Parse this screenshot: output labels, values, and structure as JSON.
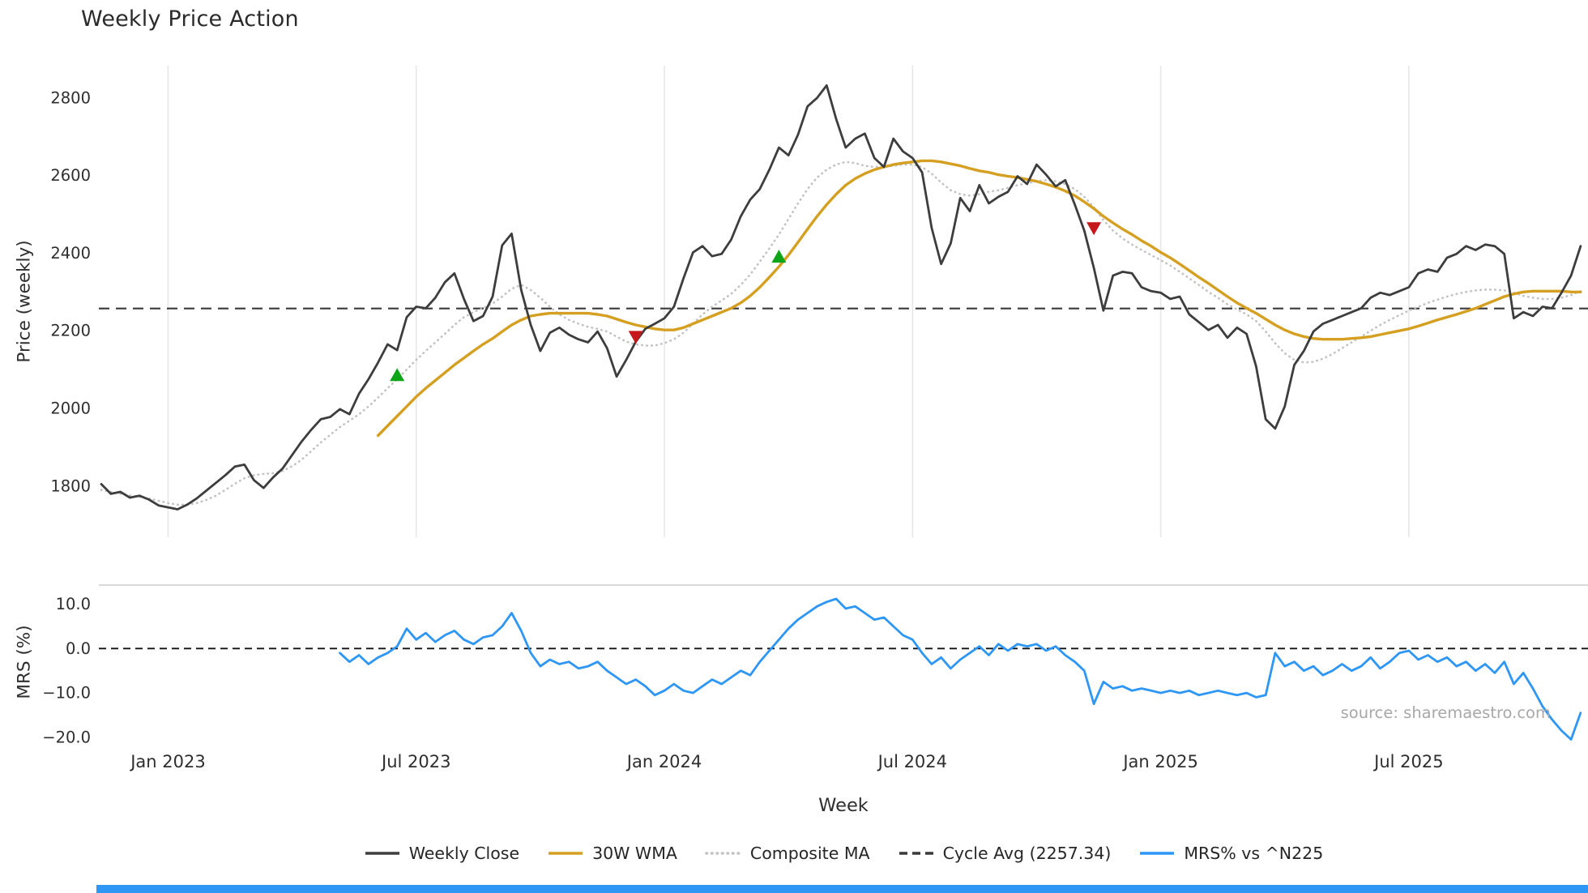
{
  "title": "Weekly Price Action",
  "xlabel": "Week",
  "source": "source: sharemaestro.com",
  "colors": {
    "close": "#3d3d3d",
    "wma": "#d5a021",
    "composite": "#c2c2c2",
    "cycle": "#3a3a3a",
    "mrs": "#2e96f5",
    "buy": "#0fa519",
    "sell": "#c5171c",
    "grid": "#e7e7e7",
    "mrs_spine": "#cbcbcb",
    "zero_line": "#111111",
    "tick_text": "#2e2e2e",
    "source_text": "#a8a8a8",
    "accent_bar": "#2e96f5"
  },
  "legend": [
    {
      "id": "weekly-close",
      "label": "Weekly Close",
      "style": "solid",
      "color_key": "close"
    },
    {
      "id": "wma",
      "label": "30W WMA",
      "style": "solid",
      "color_key": "wma"
    },
    {
      "id": "composite",
      "label": "Composite MA",
      "style": "dotted",
      "color_key": "composite"
    },
    {
      "id": "cycle-avg",
      "label": "Cycle Avg (2257.34)",
      "style": "dashed",
      "color_key": "cycle"
    },
    {
      "id": "mrs",
      "label": "MRS% vs ^N225",
      "style": "solid",
      "color_key": "mrs"
    }
  ],
  "chart_data": [
    {
      "type": "line",
      "panel": "price",
      "ylabel": "Price (weekly)",
      "x_unit": "week_index",
      "ylim": [
        1668,
        2883
      ],
      "yticks": [
        {
          "value": 1800,
          "label": "1800"
        },
        {
          "value": 2000,
          "label": "2000"
        },
        {
          "value": 2200,
          "label": "2200"
        },
        {
          "value": 2400,
          "label": "2400"
        },
        {
          "value": 2600,
          "label": "2600"
        },
        {
          "value": 2800,
          "label": "2800"
        }
      ],
      "xticks": [
        {
          "week": 7,
          "label": "Jan 2023"
        },
        {
          "week": 33,
          "label": "Jul 2023"
        },
        {
          "week": 59,
          "label": "Jan 2024"
        },
        {
          "week": 85,
          "label": "Jul 2024"
        },
        {
          "week": 111,
          "label": "Jan 2025"
        },
        {
          "week": 137,
          "label": "Jul 2025"
        }
      ],
      "cycle_avg": 2257.34,
      "series": [
        {
          "name": "Weekly Close",
          "start_week": 0,
          "values": [
            1805,
            1780,
            1785,
            1770,
            1775,
            1765,
            1750,
            1745,
            1740,
            1752,
            1768,
            1788,
            1808,
            1828,
            1850,
            1855,
            1815,
            1795,
            1822,
            1845,
            1880,
            1915,
            1945,
            1972,
            1978,
            1998,
            1985,
            2038,
            2075,
            2118,
            2165,
            2150,
            2235,
            2262,
            2258,
            2285,
            2325,
            2348,
            2282,
            2225,
            2238,
            2288,
            2420,
            2450,
            2305,
            2215,
            2148,
            2195,
            2208,
            2190,
            2178,
            2170,
            2198,
            2155,
            2082,
            2125,
            2172,
            2205,
            2218,
            2232,
            2262,
            2335,
            2402,
            2418,
            2392,
            2398,
            2435,
            2495,
            2538,
            2565,
            2615,
            2672,
            2652,
            2705,
            2778,
            2800,
            2832,
            2745,
            2672,
            2695,
            2708,
            2645,
            2622,
            2695,
            2662,
            2645,
            2608,
            2465,
            2372,
            2425,
            2542,
            2508,
            2575,
            2528,
            2545,
            2558,
            2598,
            2578,
            2628,
            2602,
            2572,
            2588,
            2525,
            2458,
            2362,
            2252,
            2342,
            2352,
            2348,
            2312,
            2302,
            2298,
            2282,
            2288,
            2242,
            2222,
            2202,
            2215,
            2182,
            2208,
            2192,
            2108,
            1972,
            1948,
            2005,
            2112,
            2148,
            2198,
            2218,
            2228,
            2238,
            2248,
            2258,
            2285,
            2298,
            2292,
            2302,
            2312,
            2348,
            2358,
            2352,
            2388,
            2398,
            2418,
            2408,
            2422,
            2418,
            2398,
            2232,
            2248,
            2238,
            2262,
            2258,
            2298,
            2342,
            2418
          ]
        },
        {
          "name": "30W WMA",
          "start_week": 29,
          "values": [
            1930,
            1955,
            1980,
            2005,
            2030,
            2052,
            2072,
            2092,
            2112,
            2130,
            2148,
            2165,
            2180,
            2198,
            2215,
            2228,
            2238,
            2242,
            2245,
            2245,
            2245,
            2245,
            2245,
            2242,
            2238,
            2230,
            2222,
            2215,
            2210,
            2205,
            2202,
            2202,
            2208,
            2218,
            2228,
            2238,
            2248,
            2258,
            2272,
            2290,
            2312,
            2338,
            2365,
            2395,
            2428,
            2462,
            2495,
            2525,
            2552,
            2575,
            2592,
            2605,
            2615,
            2622,
            2628,
            2632,
            2635,
            2638,
            2638,
            2635,
            2630,
            2625,
            2618,
            2612,
            2608,
            2602,
            2598,
            2595,
            2590,
            2585,
            2578,
            2570,
            2560,
            2548,
            2532,
            2515,
            2495,
            2478,
            2462,
            2448,
            2432,
            2418,
            2402,
            2388,
            2372,
            2355,
            2338,
            2322,
            2305,
            2288,
            2272,
            2258,
            2245,
            2230,
            2215,
            2202,
            2192,
            2185,
            2180,
            2178,
            2178,
            2178,
            2180,
            2182,
            2185,
            2190,
            2195,
            2200,
            2205,
            2212,
            2220,
            2228,
            2235,
            2242,
            2250,
            2258,
            2268,
            2278,
            2288,
            2295,
            2300,
            2302,
            2302,
            2302,
            2302,
            2300,
            2300
          ]
        },
        {
          "name": "Composite MA",
          "start_week": 0,
          "values": [
            1790,
            1785,
            1780,
            1776,
            1772,
            1768,
            1762,
            1756,
            1752,
            1752,
            1756,
            1764,
            1775,
            1790,
            1806,
            1820,
            1828,
            1831,
            1833,
            1839,
            1851,
            1868,
            1890,
            1912,
            1932,
            1952,
            1968,
            1985,
            2005,
            2028,
            2052,
            2075,
            2100,
            2125,
            2148,
            2170,
            2192,
            2215,
            2235,
            2248,
            2258,
            2270,
            2288,
            2308,
            2318,
            2305,
            2285,
            2262,
            2242,
            2228,
            2218,
            2210,
            2205,
            2198,
            2185,
            2172,
            2165,
            2162,
            2162,
            2168,
            2178,
            2195,
            2218,
            2242,
            2262,
            2278,
            2295,
            2318,
            2345,
            2378,
            2412,
            2448,
            2488,
            2528,
            2565,
            2595,
            2615,
            2628,
            2635,
            2632,
            2625,
            2622,
            2622,
            2625,
            2628,
            2628,
            2622,
            2605,
            2582,
            2562,
            2552,
            2548,
            2552,
            2558,
            2562,
            2568,
            2575,
            2580,
            2585,
            2588,
            2585,
            2578,
            2565,
            2545,
            2518,
            2485,
            2458,
            2438,
            2422,
            2408,
            2395,
            2382,
            2368,
            2352,
            2335,
            2318,
            2300,
            2285,
            2268,
            2255,
            2242,
            2225,
            2198,
            2168,
            2142,
            2125,
            2118,
            2120,
            2128,
            2140,
            2155,
            2170,
            2185,
            2200,
            2215,
            2228,
            2240,
            2252,
            2262,
            2272,
            2280,
            2288,
            2295,
            2300,
            2304,
            2306,
            2306,
            2304,
            2298,
            2290,
            2285,
            2282,
            2282,
            2285,
            2292,
            2302
          ]
        }
      ],
      "signal_markers": [
        {
          "week": 31,
          "price": 2085,
          "type": "buy"
        },
        {
          "week": 56,
          "price": 2185,
          "type": "sell"
        },
        {
          "week": 71,
          "price": 2390,
          "type": "buy"
        },
        {
          "week": 104,
          "price": 2465,
          "type": "sell"
        }
      ]
    },
    {
      "type": "line",
      "panel": "mrs",
      "ylabel": "MRS (%)",
      "ylim": [
        -20.4,
        14.3
      ],
      "yticks": [
        {
          "value": 10,
          "label": "10.0"
        },
        {
          "value": 0,
          "label": "0.0"
        },
        {
          "value": -10,
          "label": "−10.0"
        },
        {
          "value": -20,
          "label": "−20.0"
        }
      ],
      "zero_line": 0,
      "series": [
        {
          "name": "MRS% vs ^N225",
          "start_week": 25,
          "values": [
            -1,
            -3,
            -1.5,
            -3.5,
            -2,
            -1,
            0.5,
            4.5,
            2,
            3.5,
            1.5,
            3,
            4,
            2,
            1,
            2.5,
            3,
            5,
            8,
            4,
            -1,
            -4,
            -2.5,
            -3.5,
            -3,
            -4.5,
            -4,
            -3,
            -5,
            -6.5,
            -8,
            -7,
            -8.5,
            -10.5,
            -9.5,
            -8,
            -9.5,
            -10,
            -8.5,
            -7,
            -8,
            -6.5,
            -5,
            -6,
            -3,
            -0.5,
            2,
            4.5,
            6.5,
            8,
            9.5,
            10.5,
            11.2,
            9,
            9.5,
            8,
            6.5,
            7,
            5,
            3,
            2,
            -1,
            -3.5,
            -2,
            -4.5,
            -2.5,
            -1,
            0.5,
            -1.5,
            1,
            -0.5,
            1,
            0.5,
            1,
            -0.5,
            0.5,
            -1.5,
            -3,
            -5,
            -12.5,
            -7.5,
            -9,
            -8.5,
            -9.5,
            -9,
            -9.5,
            -10,
            -9.5,
            -10,
            -9.5,
            -10.5,
            -10,
            -9.5,
            -10,
            -10.5,
            -10,
            -11,
            -10.5,
            -1,
            -4,
            -3,
            -5,
            -4,
            -6,
            -5,
            -3.5,
            -5,
            -4,
            -2,
            -4.5,
            -3,
            -1,
            -0.5,
            -2.5,
            -1.5,
            -3,
            -2,
            -4,
            -3,
            -5,
            -3.5,
            -5.5,
            -3,
            -8,
            -5.5,
            -9,
            -13,
            -16,
            -18.5,
            -20.5,
            -14.5
          ]
        }
      ]
    }
  ]
}
